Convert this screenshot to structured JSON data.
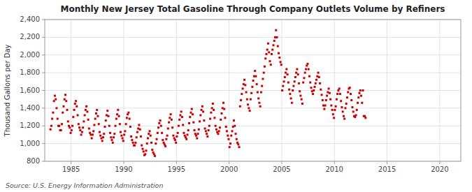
{
  "chart_data": {
    "type": "scatter",
    "title": "Monthly New Jersey Total Gasoline Through Company Outlets Volume by Refiners",
    "ylabel": "Thousand Gallons per Day",
    "source": "Source: U.S. Energy Information Administration",
    "color": "#cc0000",
    "marker": "square",
    "grid": true,
    "xlim": [
      1982.5,
      2022
    ],
    "ylim": [
      800,
      2400
    ],
    "xticks": [
      1985,
      1990,
      1995,
      2000,
      2005,
      2010,
      2015,
      2020
    ],
    "yticks": [
      800,
      {
        "value": 1000,
        "label": "1,000"
      },
      {
        "value": 1200,
        "label": "1,200"
      },
      {
        "value": 1400,
        "label": "1,400"
      },
      {
        "value": 1600,
        "label": "1,600"
      },
      {
        "value": 1800,
        "label": "1,800"
      },
      {
        "value": 2000,
        "label": "2,000"
      },
      {
        "value": 2200,
        "label": "2,200"
      },
      {
        "value": 2400,
        "label": "2,400"
      }
    ],
    "x": [
      1983.041666666667,
      1983.125,
      1983.208333333333,
      1983.291666666667,
      1983.375,
      1983.458333333333,
      1983.541666666667,
      1983.625,
      1983.708333333333,
      1983.791666666667,
      1983.875,
      1983.958333333333,
      1984.041666666667,
      1984.125,
      1984.208333333333,
      1984.291666666667,
      1984.375,
      1984.458333333333,
      1984.541666666667,
      1984.625,
      1984.708333333333,
      1984.791666666667,
      1984.875,
      1984.958333333333,
      1985.041666666667,
      1985.125,
      1985.208333333333,
      1985.291666666667,
      1985.375,
      1985.458333333333,
      1985.541666666667,
      1985.625,
      1985.708333333333,
      1985.791666666667,
      1985.875,
      1985.958333333333,
      1986.041666666667,
      1986.125,
      1986.208333333333,
      1986.291666666667,
      1986.375,
      1986.458333333333,
      1986.541666666667,
      1986.625,
      1986.708333333333,
      1986.791666666667,
      1986.875,
      1986.958333333333,
      1987.041666666667,
      1987.125,
      1987.208333333333,
      1987.291666666667,
      1987.375,
      1987.458333333333,
      1987.541666666667,
      1987.625,
      1987.708333333333,
      1987.791666666667,
      1987.875,
      1987.958333333333,
      1988.041666666667,
      1988.125,
      1988.208333333333,
      1988.291666666667,
      1988.375,
      1988.458333333333,
      1988.541666666667,
      1988.625,
      1988.708333333333,
      1988.791666666667,
      1988.875,
      1988.958333333333,
      1989.041666666667,
      1989.125,
      1989.208333333333,
      1989.291666666667,
      1989.375,
      1989.458333333333,
      1989.541666666667,
      1989.625,
      1989.708333333333,
      1989.791666666667,
      1989.875,
      1989.958333333333,
      1990.041666666667,
      1990.125,
      1990.208333333333,
      1990.291666666667,
      1990.375,
      1990.458333333333,
      1990.541666666667,
      1990.625,
      1990.708333333333,
      1990.791666666667,
      1990.875,
      1990.958333333333,
      1991.041666666667,
      1991.125,
      1991.208333333333,
      1991.291666666667,
      1991.375,
      1991.458333333333,
      1991.541666666667,
      1991.625,
      1991.708333333333,
      1991.791666666667,
      1991.875,
      1991.958333333333,
      1992.041666666667,
      1992.125,
      1992.208333333333,
      1992.291666666667,
      1992.375,
      1992.458333333333,
      1992.541666666667,
      1992.625,
      1992.708333333333,
      1992.791666666667,
      1992.875,
      1992.958333333333,
      1993.041666666667,
      1993.125,
      1993.208333333333,
      1993.291666666667,
      1993.375,
      1993.458333333333,
      1993.541666666667,
      1993.625,
      1993.708333333333,
      1993.791666666667,
      1993.875,
      1993.958333333333,
      1994.041666666667,
      1994.125,
      1994.208333333333,
      1994.291666666667,
      1994.375,
      1994.458333333333,
      1994.541666666667,
      1994.625,
      1994.708333333333,
      1994.791666666667,
      1994.875,
      1994.958333333333,
      1995.041666666667,
      1995.125,
      1995.208333333333,
      1995.291666666667,
      1995.375,
      1995.458333333333,
      1995.541666666667,
      1995.625,
      1995.708333333333,
      1995.791666666667,
      1995.875,
      1995.958333333333,
      1996.041666666667,
      1996.125,
      1996.208333333333,
      1996.291666666667,
      1996.375,
      1996.458333333333,
      1996.541666666667,
      1996.625,
      1996.708333333333,
      1996.791666666667,
      1996.875,
      1996.958333333333,
      1997.041666666667,
      1997.125,
      1997.208333333333,
      1997.291666666667,
      1997.375,
      1997.458333333333,
      1997.541666666667,
      1997.625,
      1997.708333333333,
      1997.791666666667,
      1997.875,
      1997.958333333333,
      1998.041666666667,
      1998.125,
      1998.208333333333,
      1998.291666666667,
      1998.375,
      1998.458333333333,
      1998.541666666667,
      1998.625,
      1998.708333333333,
      1998.791666666667,
      1998.875,
      1998.958333333333,
      1999.041666666667,
      1999.125,
      1999.208333333333,
      1999.291666666667,
      1999.375,
      1999.458333333333,
      1999.541666666667,
      1999.625,
      1999.708333333333,
      1999.791666666667,
      1999.875,
      1999.958333333333,
      2000.041666666667,
      2000.125,
      2000.208333333333,
      2000.291666666667,
      2000.375,
      2000.458333333333,
      2000.541666666667,
      2000.625,
      2000.708333333333,
      2000.791666666667,
      2000.875,
      2000.958333333333,
      2001.041666666667,
      2001.125,
      2001.208333333333,
      2001.291666666667,
      2001.375,
      2001.458333333333,
      2001.541666666667,
      2001.625,
      2001.708333333333,
      2001.791666666667,
      2001.875,
      2001.958333333333,
      2002.041666666667,
      2002.125,
      2002.208333333333,
      2002.291666666667,
      2002.375,
      2002.458333333333,
      2002.541666666667,
      2002.625,
      2002.708333333333,
      2002.791666666667,
      2002.875,
      2002.958333333333,
      2003.041666666667,
      2003.125,
      2003.208333333333,
      2003.291666666667,
      2003.375,
      2003.458333333333,
      2003.541666666667,
      2003.625,
      2003.708333333333,
      2003.791666666667,
      2003.875,
      2003.958333333333,
      2004.041666666667,
      2004.125,
      2004.208333333333,
      2004.291666666667,
      2004.375,
      2004.458333333333,
      2004.541666666667,
      2004.625,
      2004.708333333333,
      2004.791666666667,
      2004.875,
      2004.958333333333,
      2005.041666666667,
      2005.125,
      2005.208333333333,
      2005.291666666667,
      2005.375,
      2005.458333333333,
      2005.541666666667,
      2005.625,
      2005.708333333333,
      2005.791666666667,
      2005.875,
      2005.958333333333,
      2006.041666666667,
      2006.125,
      2006.208333333333,
      2006.291666666667,
      2006.375,
      2006.458333333333,
      2006.541666666667,
      2006.625,
      2006.708333333333,
      2006.791666666667,
      2006.875,
      2006.958333333333,
      2007.041666666667,
      2007.125,
      2007.208333333333,
      2007.291666666667,
      2007.375,
      2007.458333333333,
      2007.541666666667,
      2007.625,
      2007.708333333333,
      2007.791666666667,
      2007.875,
      2007.958333333333,
      2008.041666666667,
      2008.125,
      2008.208333333333,
      2008.291666666667,
      2008.375,
      2008.458333333333,
      2008.541666666667,
      2008.625,
      2008.708333333333,
      2008.791666666667,
      2008.875,
      2008.958333333333,
      2009.041666666667,
      2009.125,
      2009.208333333333,
      2009.291666666667,
      2009.375,
      2009.458333333333,
      2009.541666666667,
      2009.625,
      2009.708333333333,
      2009.791666666667,
      2009.875,
      2009.958333333333,
      2010.041666666667,
      2010.125,
      2010.208333333333,
      2010.291666666667,
      2010.375,
      2010.458333333333,
      2010.541666666667,
      2010.625,
      2010.708333333333,
      2010.791666666667,
      2010.875,
      2010.958333333333,
      2011.041666666667,
      2011.125,
      2011.208333333333,
      2011.291666666667,
      2011.375,
      2011.458333333333,
      2011.541666666667,
      2011.625,
      2011.708333333333,
      2011.791666666667,
      2011.875,
      2011.958333333333,
      2012.041666666667,
      2012.125,
      2012.208333333333,
      2012.291666666667,
      2012.375,
      2012.458333333333,
      2012.541666666667,
      2012.625,
      2012.708333333333,
      2012.791666666667,
      2012.875,
      2012.958333333333
    ],
    "values": [
      1160,
      1200,
      1280,
      1350,
      1480,
      1540,
      1500,
      1400,
      1280,
      1200,
      1200,
      1150,
      1150,
      1220,
      1350,
      1420,
      1500,
      1550,
      1480,
      1380,
      1250,
      1200,
      1180,
      1120,
      1150,
      1200,
      1300,
      1380,
      1450,
      1480,
      1420,
      1320,
      1220,
      1180,
      1150,
      1100,
      1130,
      1180,
      1250,
      1320,
      1380,
      1420,
      1360,
      1270,
      1170,
      1120,
      1100,
      1060,
      1100,
      1140,
      1210,
      1280,
      1340,
      1380,
      1310,
      1220,
      1130,
      1090,
      1060,
      1030,
      1070,
      1110,
      1190,
      1260,
      1320,
      1370,
      1310,
      1200,
      1120,
      1070,
      1040,
      1010,
      1070,
      1110,
      1200,
      1280,
      1330,
      1380,
      1310,
      1220,
      1130,
      1090,
      1060,
      1030,
      1100,
      1140,
      1220,
      1290,
      1330,
      1350,
      1280,
      1190,
      1080,
      1040,
      1010,
      980,
      980,
      1010,
      1070,
      1130,
      1170,
      1210,
      1160,
      1080,
      980,
      940,
      910,
      870,
      880,
      920,
      1000,
      1060,
      1110,
      1140,
      1090,
      1010,
      930,
      900,
      880,
      860,
      1000,
      1050,
      1120,
      1180,
      1230,
      1260,
      1200,
      1120,
      1040,
      1010,
      990,
      970,
      1050,
      1090,
      1170,
      1240,
      1290,
      1330,
      1270,
      1180,
      1090,
      1060,
      1040,
      1010,
      1080,
      1120,
      1200,
      1270,
      1320,
      1360,
      1300,
      1210,
      1120,
      1090,
      1070,
      1050,
      1100,
      1150,
      1230,
      1300,
      1350,
      1390,
      1330,
      1240,
      1150,
      1110,
      1090,
      1060,
      1110,
      1160,
      1250,
      1320,
      1380,
      1420,
      1360,
      1260,
      1170,
      1140,
      1110,
      1080,
      1150,
      1200,
      1280,
      1350,
      1400,
      1450,
      1380,
      1290,
      1200,
      1160,
      1130,
      1110,
      1140,
      1180,
      1270,
      1340,
      1400,
      1460,
      1390,
      1290,
      1190,
      1140,
      1090,
      1050,
      960,
      1000,
      1090,
      1140,
      1190,
      1260,
      1200,
      1110,
      1050,
      1010,
      990,
      960,
      1420,
      1490,
      1560,
      1620,
      1670,
      1720,
      1660,
      1580,
      1500,
      1440,
      1400,
      1370,
      1500,
      1570,
      1640,
      1710,
      1760,
      1820,
      1760,
      1670,
      1580,
      1510,
      1460,
      1420,
      1580,
      1650,
      1730,
      1800,
      1870,
      1960,
      2010,
      2060,
      2130,
      2030,
      1930,
      1890,
      2010,
      2060,
      2110,
      2160,
      2200,
      2280,
      2200,
      2100,
      2020,
      1970,
      1920,
      1890,
      1600,
      1650,
      1700,
      1750,
      1800,
      1840,
      1780,
      1690,
      1610,
      1560,
      1510,
      1460,
      1600,
      1650,
      1700,
      1750,
      1800,
      1840,
      1780,
      1680,
      1590,
      1540,
      1500,
      1450,
      1690,
      1740,
      1800,
      1840,
      1880,
      1900,
      1840,
      1760,
      1690,
      1630,
      1590,
      1560,
      1600,
      1640,
      1680,
      1720,
      1760,
      1800,
      1750,
      1680,
      1610,
      1550,
      1490,
      1430,
      1390,
      1430,
      1490,
      1540,
      1580,
      1620,
      1570,
      1500,
      1430,
      1380,
      1330,
      1290,
      1380,
      1420,
      1500,
      1560,
      1600,
      1620,
      1560,
      1480,
      1410,
      1360,
      1310,
      1280,
      1400,
      1450,
      1520,
      1580,
      1620,
      1630,
      1560,
      1490,
      1410,
      1360,
      1310,
      1300,
      1320,
      1380,
      1460,
      1520,
      1570,
      1600,
      1540,
      1460,
      1600,
      1310,
      1310,
      1290
    ]
  }
}
